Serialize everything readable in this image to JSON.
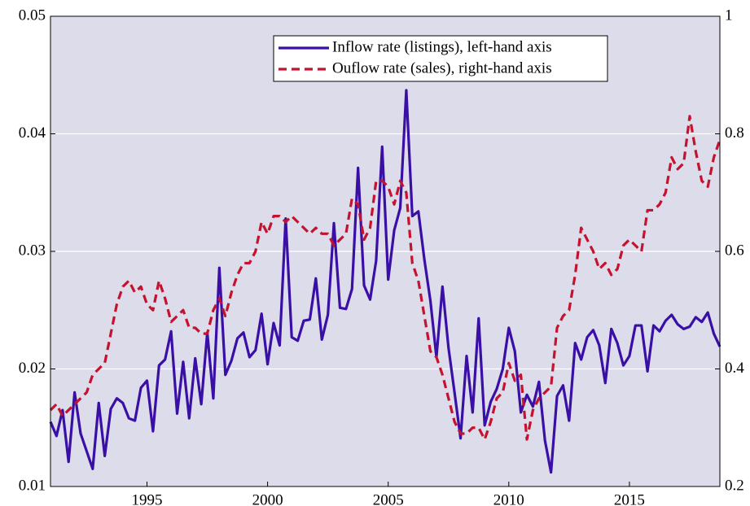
{
  "chart_data": {
    "type": "line",
    "x": [
      1991,
      1991.25,
      1991.5,
      1991.75,
      1992,
      1992.25,
      1992.5,
      1992.75,
      1993,
      1993.25,
      1993.5,
      1993.75,
      1994,
      1994.25,
      1994.5,
      1994.75,
      1995,
      1995.25,
      1995.5,
      1995.75,
      1996,
      1996.25,
      1996.5,
      1996.75,
      1997,
      1997.25,
      1997.5,
      1997.75,
      1998,
      1998.25,
      1998.5,
      1998.75,
      1999,
      1999.25,
      1999.5,
      1999.75,
      2000,
      2000.25,
      2000.5,
      2000.75,
      2001,
      2001.25,
      2001.5,
      2001.75,
      2002,
      2002.25,
      2002.5,
      2002.75,
      2003,
      2003.25,
      2003.5,
      2003.75,
      2004,
      2004.25,
      2004.5,
      2004.75,
      2005,
      2005.25,
      2005.5,
      2005.75,
      2006,
      2006.25,
      2006.5,
      2006.75,
      2007,
      2007.25,
      2007.5,
      2007.75,
      2008,
      2008.25,
      2008.5,
      2008.75,
      2009,
      2009.25,
      2009.5,
      2009.75,
      2010,
      2010.25,
      2010.5,
      2010.75,
      2011,
      2011.25,
      2011.5,
      2011.75,
      2012,
      2012.25,
      2012.5,
      2012.75,
      2013,
      2013.25,
      2013.5,
      2013.75,
      2014,
      2014.25,
      2014.5,
      2014.75,
      2015,
      2015.25,
      2015.5,
      2015.75,
      2016,
      2016.25,
      2016.5,
      2016.75,
      2017,
      2017.25,
      2017.5,
      2017.75,
      2018,
      2018.25,
      2018.5,
      2018.75
    ],
    "series": [
      {
        "name": "Inflow rate (listings), left-hand axis",
        "color": "#3a0fa6",
        "dashed": false,
        "values": [
          0.0155,
          0.0143,
          0.0165,
          0.0121,
          0.018,
          0.0145,
          0.013,
          0.0115,
          0.0171,
          0.0126,
          0.0166,
          0.0175,
          0.0171,
          0.0158,
          0.0156,
          0.0184,
          0.019,
          0.0147,
          0.0203,
          0.0208,
          0.0232,
          0.0162,
          0.0206,
          0.0158,
          0.0209,
          0.017,
          0.0231,
          0.0175,
          0.0286,
          0.0195,
          0.0207,
          0.0226,
          0.0231,
          0.021,
          0.0216,
          0.0247,
          0.0204,
          0.0239,
          0.022,
          0.0328,
          0.0227,
          0.0224,
          0.0241,
          0.0242,
          0.0277,
          0.0225,
          0.0246,
          0.0324,
          0.0252,
          0.0251,
          0.0268,
          0.0371,
          0.0271,
          0.0259,
          0.0292,
          0.0389,
          0.0276,
          0.0318,
          0.0337,
          0.0437,
          0.033,
          0.0334,
          0.0293,
          0.0258,
          0.021,
          0.027,
          0.0218,
          0.018,
          0.0141,
          0.0211,
          0.0163,
          0.0243,
          0.0152,
          0.0172,
          0.0183,
          0.02,
          0.0235,
          0.0215,
          0.0163,
          0.0178,
          0.0168,
          0.0189,
          0.0139,
          0.0112,
          0.0177,
          0.0186,
          0.0156,
          0.0222,
          0.0208,
          0.0227,
          0.0233,
          0.022,
          0.0188,
          0.0234,
          0.0222,
          0.0203,
          0.0211,
          0.0237,
          0.0237,
          0.0198,
          0.0237,
          0.0232,
          0.0241,
          0.0246,
          0.0238,
          0.0234,
          0.0236,
          0.0244,
          0.024,
          0.0248,
          0.023,
          0.0219
        ]
      },
      {
        "name": "Ouflow rate (sales), right-hand axis",
        "color": "#c4122f",
        "dashed": true,
        "axis": "y2",
        "values": [
          0.33,
          0.34,
          0.32,
          0.33,
          0.34,
          0.35,
          0.36,
          0.39,
          0.4,
          0.41,
          0.46,
          0.51,
          0.54,
          0.55,
          0.53,
          0.54,
          0.51,
          0.5,
          0.55,
          0.52,
          0.48,
          0.49,
          0.5,
          0.47,
          0.47,
          0.46,
          0.46,
          0.5,
          0.52,
          0.49,
          0.53,
          0.56,
          0.58,
          0.58,
          0.6,
          0.65,
          0.63,
          0.66,
          0.66,
          0.65,
          0.66,
          0.65,
          0.64,
          0.63,
          0.64,
          0.63,
          0.63,
          0.61,
          0.62,
          0.63,
          0.69,
          0.68,
          0.62,
          0.64,
          0.72,
          0.72,
          0.71,
          0.68,
          0.72,
          0.7,
          0.58,
          0.55,
          0.49,
          0.43,
          0.42,
          0.39,
          0.35,
          0.31,
          0.29,
          0.29,
          0.3,
          0.3,
          0.28,
          0.31,
          0.35,
          0.36,
          0.41,
          0.38,
          0.39,
          0.28,
          0.33,
          0.35,
          0.36,
          0.37,
          0.47,
          0.49,
          0.5,
          0.56,
          0.64,
          0.62,
          0.6,
          0.57,
          0.58,
          0.56,
          0.57,
          0.61,
          0.62,
          0.61,
          0.6,
          0.67,
          0.67,
          0.68,
          0.7,
          0.76,
          0.74,
          0.75,
          0.83,
          0.77,
          0.72,
          0.71,
          0.76,
          0.79
        ]
      }
    ],
    "xlim": [
      1991,
      2018.75
    ],
    "xticks": [
      1995,
      2000,
      2005,
      2010,
      2015
    ],
    "ylim": [
      0.01,
      0.05
    ],
    "yticks": [
      0.01,
      0.02,
      0.03,
      0.04,
      0.05
    ],
    "y2lim": [
      0.2,
      1
    ],
    "y2ticks": [
      0.2,
      0.4,
      0.6,
      0.8,
      1
    ],
    "grid": true,
    "legend": "upper right"
  }
}
